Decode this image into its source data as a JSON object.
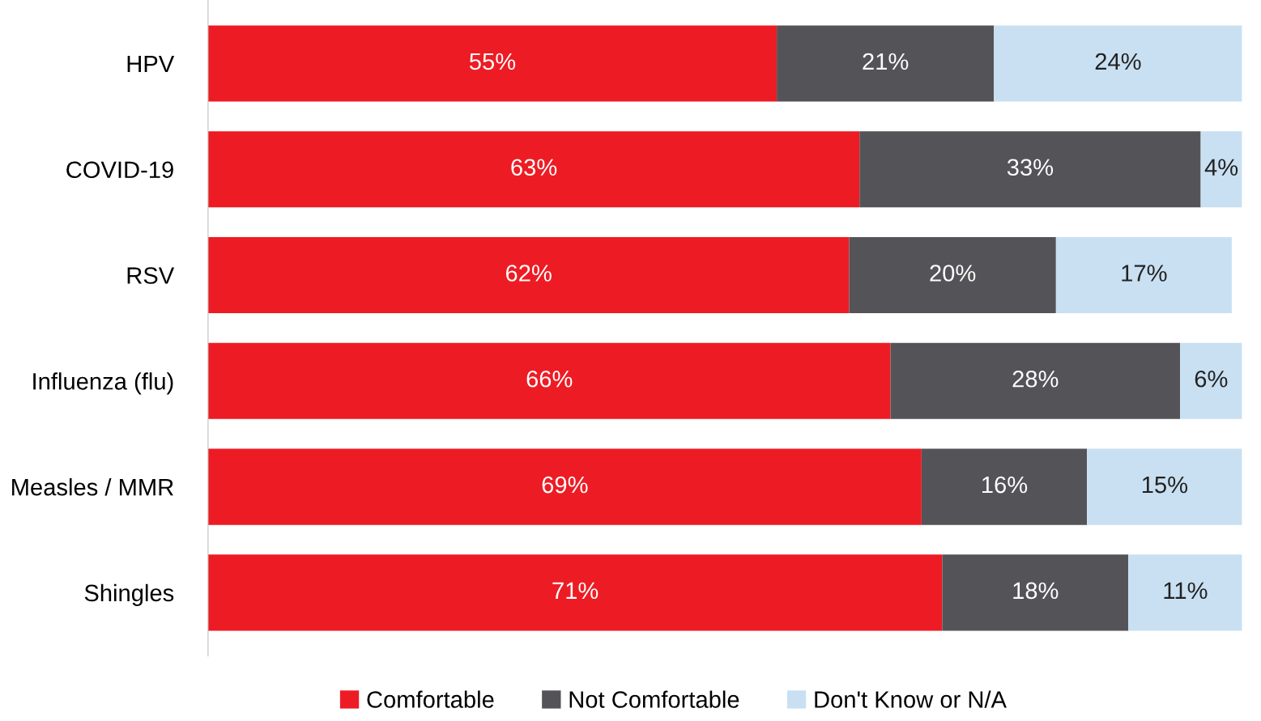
{
  "chart_data": {
    "type": "bar",
    "orientation": "horizontal",
    "stacked": true,
    "legend": "bottom",
    "tick_labels": "y",
    "xlim": [
      0,
      100
    ],
    "categories": [
      "HPV",
      "COVID-19",
      "RSV",
      "Influenza (flu)",
      "Measles / MMR",
      "Shingles"
    ],
    "series": [
      {
        "name": "Comfortable",
        "color": "#ed1c24",
        "values": [
          55,
          63,
          62,
          66,
          69,
          71
        ],
        "value_labels": [
          "55%",
          "63%",
          "62%",
          "66%",
          "69%",
          "71%"
        ]
      },
      {
        "name": "Not Comfortable",
        "color": "#545458",
        "values": [
          21,
          33,
          20,
          28,
          16,
          18
        ],
        "value_labels": [
          "21%",
          "33%",
          "20%",
          "28%",
          "16%",
          "18%"
        ]
      },
      {
        "name": "Don't Know or N/A",
        "color": "#c9e0f2",
        "values": [
          24,
          4,
          17,
          6,
          15,
          11
        ],
        "value_labels": [
          "24%",
          "4%",
          "17%",
          "6%",
          "15%",
          "11%"
        ]
      }
    ]
  }
}
